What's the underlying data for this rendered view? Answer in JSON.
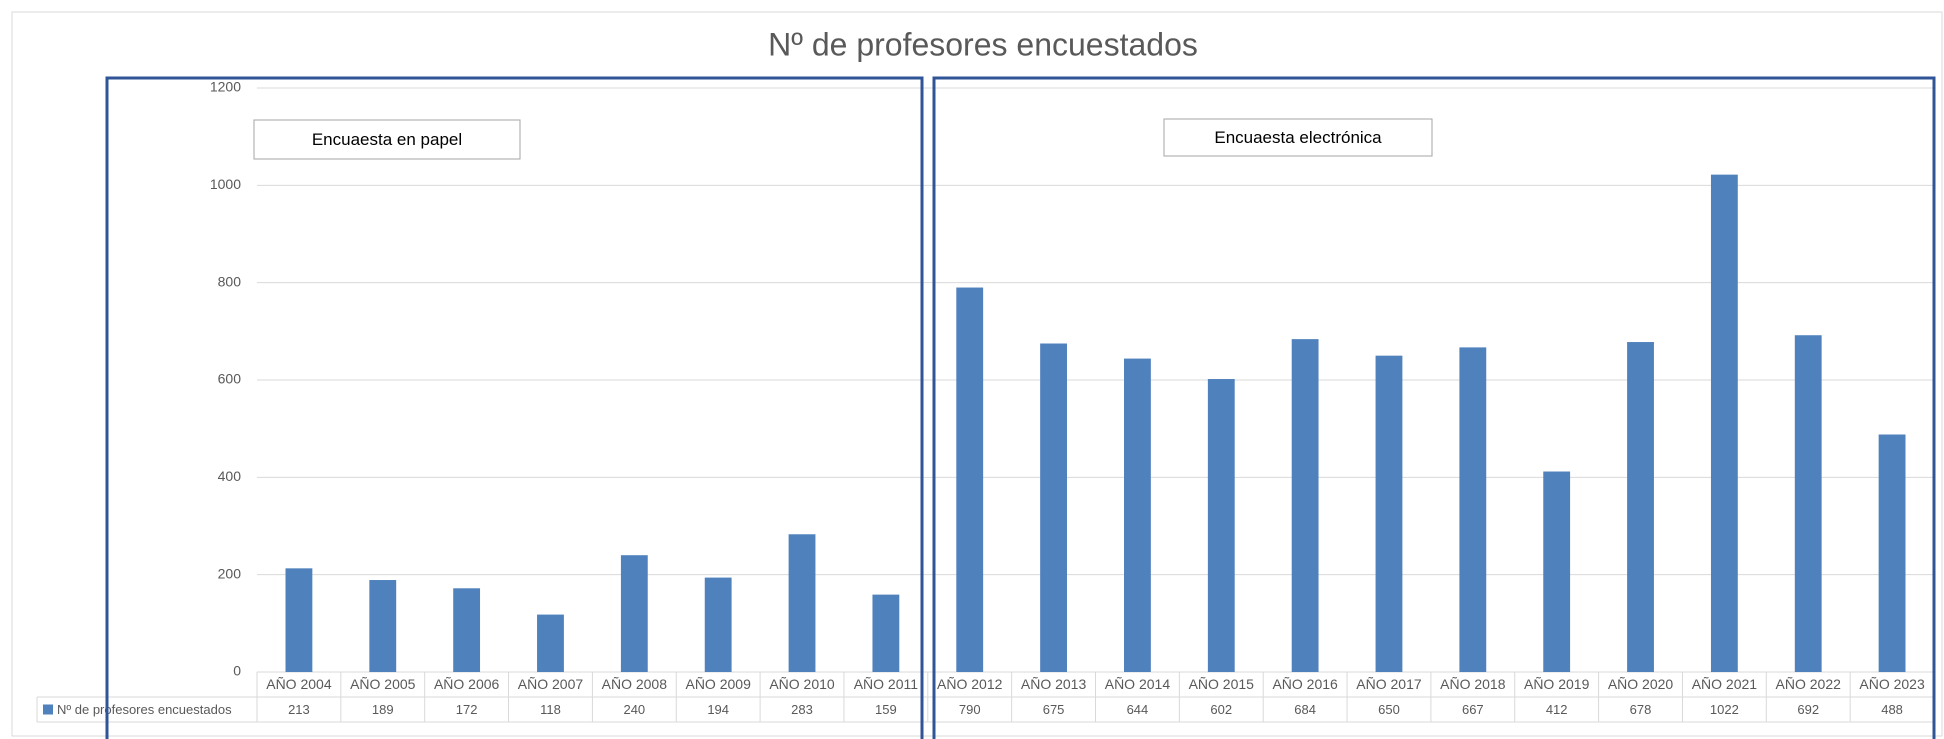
{
  "chart_data": {
    "type": "bar",
    "title": "Nº de profesores encuestados",
    "categories": [
      "AÑO 2004",
      "AÑO 2005",
      "AÑO 2006",
      "AÑO 2007",
      "AÑO 2008",
      "AÑO 2009",
      "AÑO 2010",
      "AÑO 2011",
      "AÑO 2012",
      "AÑO 2013",
      "AÑO 2014",
      "AÑO 2015",
      "AÑO 2016",
      "AÑO 2017",
      "AÑO 2018",
      "AÑO 2019",
      "AÑO 2020",
      "AÑO 2021",
      "AÑO 2022",
      "AÑO 2023"
    ],
    "series": [
      {
        "name": "Nº de profesores encuestados",
        "color": "#4f81bd",
        "values": [
          213,
          189,
          172,
          118,
          240,
          194,
          283,
          159,
          790,
          675,
          644,
          602,
          684,
          650,
          667,
          412,
          678,
          1022,
          692,
          488
        ]
      }
    ],
    "ylim": [
      0,
      1200
    ],
    "yticks": [
      0,
      200,
      400,
      600,
      800,
      1000,
      1200
    ],
    "grid": true,
    "annotations": [
      "Encuaesta en papel",
      "Encuaesta electrónica"
    ]
  }
}
